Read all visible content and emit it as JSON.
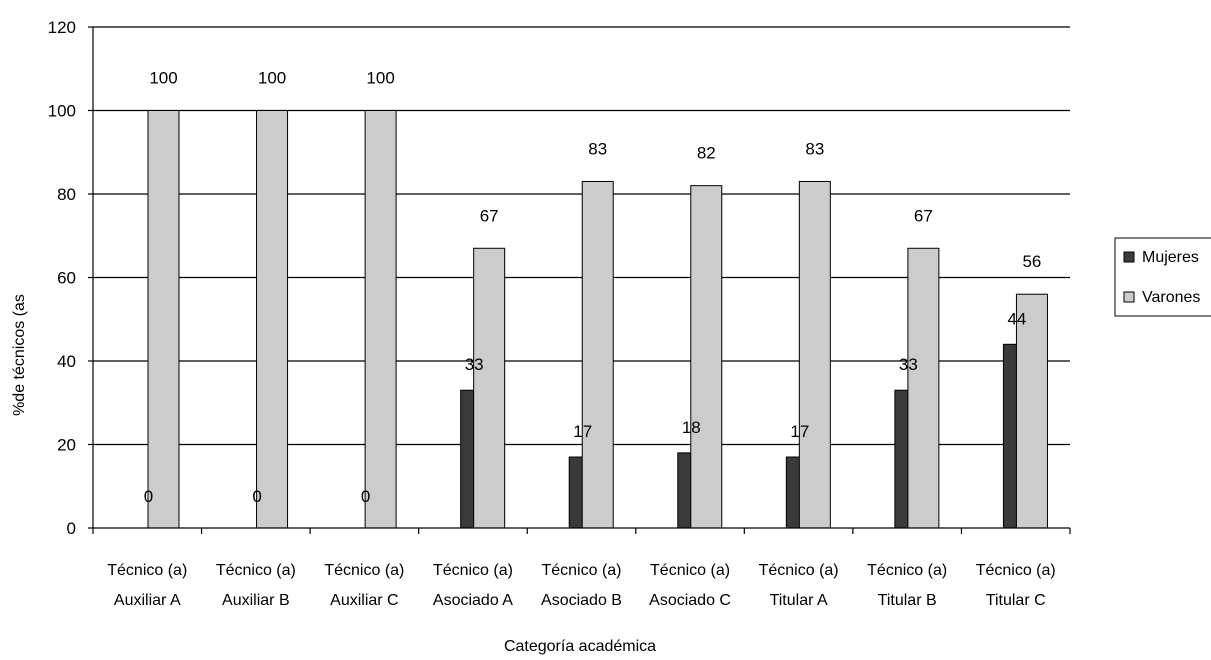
{
  "chart_data": {
    "type": "bar",
    "categories": [
      [
        "Técnico (a)",
        "Auxiliar A"
      ],
      [
        "Técnico (a)",
        "Auxiliar B"
      ],
      [
        "Técnico (a)",
        "Auxiliar C"
      ],
      [
        "Técnico (a)",
        "Asociado A"
      ],
      [
        "Técnico (a)",
        "Asociado B"
      ],
      [
        "Técnico (a)",
        "Asociado C"
      ],
      [
        "Técnico (a)",
        "Titular A"
      ],
      [
        "Técnico (a)",
        "Titular B"
      ],
      [
        "Técnico (a)",
        "Titular C"
      ]
    ],
    "series": [
      {
        "name": "Mujeres",
        "values": [
          0,
          0,
          0,
          33,
          17,
          18,
          17,
          33,
          44
        ],
        "color": "#3a3a3a"
      },
      {
        "name": "Varones",
        "values": [
          100,
          100,
          100,
          67,
          83,
          82,
          83,
          67,
          56
        ],
        "color": "#cccccc"
      }
    ],
    "xlabel": "Categoría académica",
    "ylabel": "%de técnicos (as",
    "ylim": [
      0,
      120
    ],
    "yticks": [
      0,
      20,
      40,
      60,
      80,
      100,
      120
    ],
    "grid": true,
    "legend_position": "right"
  }
}
